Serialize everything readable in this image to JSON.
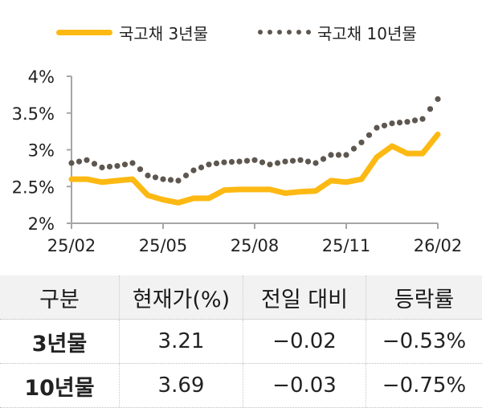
{
  "legend": {
    "series_3y": "국고채 3년물",
    "series_10y": "국고채 10년물"
  },
  "colors": {
    "series_3y": "#FDB913",
    "series_10y": "#5E5750",
    "axis": "#A6A6A6",
    "table_header_bg": "#F2F2F2"
  },
  "axis": {
    "y_ticks": [
      "4%",
      "3.5%",
      "3%",
      "2.5%",
      "2%"
    ],
    "x_ticks": [
      "25/02",
      "25/05",
      "25/08",
      "25/11",
      "26/02"
    ]
  },
  "table": {
    "headers": [
      "구분",
      "현재가(%)",
      "전일 대비",
      "등락률"
    ],
    "rows": [
      [
        "3년물",
        "3.21",
        "−0.02",
        "−0.53%"
      ],
      [
        "10년물",
        "3.69",
        "−0.03",
        "−0.75%"
      ]
    ]
  },
  "chart_data": {
    "type": "line",
    "title": "",
    "xlabel": "",
    "ylabel": "",
    "ylim": [
      2,
      4
    ],
    "y_ticks": [
      2,
      2.5,
      3,
      3.5,
      4
    ],
    "x_tick_labels": [
      "25/02",
      "25/05",
      "25/08",
      "25/11",
      "26/02"
    ],
    "legend_position": "top",
    "grid": false,
    "x": [
      "25/02a",
      "25/02b",
      "25/03a",
      "25/03b",
      "25/04a",
      "25/04b",
      "25/05a",
      "25/05b",
      "25/06a",
      "25/06b",
      "25/07a",
      "25/07b",
      "25/08a",
      "25/08b",
      "25/09a",
      "25/09b",
      "25/10a",
      "25/10b",
      "25/11a",
      "25/11b",
      "25/12a",
      "25/12b",
      "26/01a",
      "26/01b",
      "26/02a"
    ],
    "series": [
      {
        "name": "국고채 3년물",
        "style": "solid",
        "values": [
          2.6,
          2.6,
          2.56,
          2.58,
          2.6,
          2.38,
          2.32,
          2.28,
          2.34,
          2.34,
          2.45,
          2.46,
          2.46,
          2.46,
          2.41,
          2.43,
          2.44,
          2.58,
          2.56,
          2.6,
          2.9,
          3.05,
          2.95,
          2.95,
          3.21
        ]
      },
      {
        "name": "국고채 10년물",
        "style": "dotted",
        "values": [
          2.82,
          2.86,
          2.76,
          2.78,
          2.82,
          2.65,
          2.6,
          2.58,
          2.72,
          2.8,
          2.83,
          2.84,
          2.86,
          2.8,
          2.84,
          2.86,
          2.82,
          2.93,
          2.93,
          3.1,
          3.3,
          3.36,
          3.38,
          3.42,
          3.69
        ]
      }
    ]
  }
}
